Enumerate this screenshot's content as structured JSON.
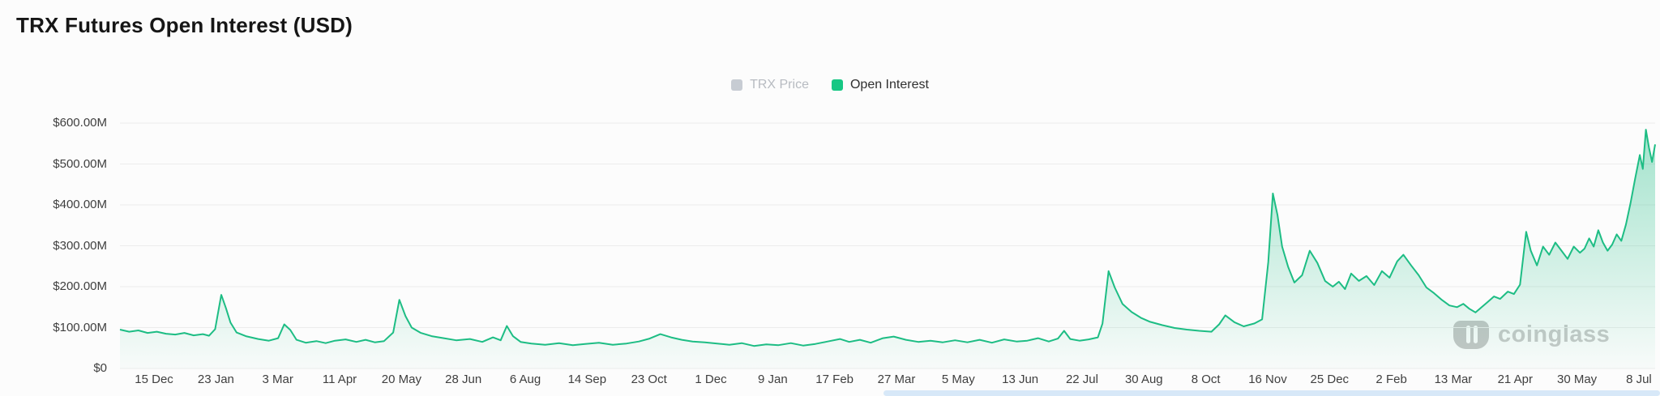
{
  "title": "TRX Futures Open Interest (USD)",
  "legend": {
    "items": [
      {
        "label": "TRX Price",
        "color": "#c7ccd3",
        "text_color": "#b7bbc1",
        "active": false
      },
      {
        "label": "Open Interest",
        "color": "#17c784",
        "text_color": "#2f2f2f",
        "active": true
      }
    ]
  },
  "watermark": {
    "text": "coinglass"
  },
  "colors": {
    "background": "#fcfcfc",
    "line": "#1dbd84",
    "area_top": "rgba(29,189,132,0.40)",
    "area_bottom": "rgba(29,189,132,0.02)",
    "grid": "#ececec",
    "axis_text": "#3f3f3f",
    "scrollbar": "#d7e8f8"
  },
  "chart_data": {
    "type": "area",
    "title": "TRX Futures Open Interest (USD)",
    "xlabel": "",
    "ylabel": "",
    "grid": "horizontal",
    "legend_position": "top-center",
    "ylim_usd": [
      0,
      600000000
    ],
    "y_unit": "millions of USD",
    "y_ticks": [
      {
        "value": 0,
        "label": "$0"
      },
      {
        "value": 100,
        "label": "$100.00M"
      },
      {
        "value": 200,
        "label": "$200.00M"
      },
      {
        "value": 300,
        "label": "$300.00M"
      },
      {
        "value": 400,
        "label": "$400.00M"
      },
      {
        "value": 500,
        "label": "$500.00M"
      },
      {
        "value": 600,
        "label": "$600.00M"
      }
    ],
    "x_ticks": [
      "15 Dec",
      "23 Jan",
      "3 Mar",
      "11 Apr",
      "20 May",
      "28 Jun",
      "6 Aug",
      "14 Sep",
      "23 Oct",
      "1 Dec",
      "9 Jan",
      "17 Feb",
      "27 Mar",
      "5 May",
      "13 Jun",
      "22 Jul",
      "30 Aug",
      "8 Oct",
      "16 Nov",
      "25 Dec",
      "2 Feb",
      "13 Mar",
      "21 Apr",
      "30 May",
      "8 Jul"
    ],
    "series": [
      {
        "name": "Open Interest",
        "unit": "USD (millions), x = fraction of plotted time range",
        "points": [
          [
            0.0,
            95
          ],
          [
            0.006,
            90
          ],
          [
            0.012,
            93
          ],
          [
            0.018,
            87
          ],
          [
            0.024,
            90
          ],
          [
            0.03,
            85
          ],
          [
            0.036,
            83
          ],
          [
            0.042,
            87
          ],
          [
            0.048,
            81
          ],
          [
            0.054,
            84
          ],
          [
            0.058,
            80
          ],
          [
            0.062,
            96
          ],
          [
            0.066,
            180
          ],
          [
            0.069,
            148
          ],
          [
            0.072,
            112
          ],
          [
            0.076,
            88
          ],
          [
            0.082,
            79
          ],
          [
            0.09,
            72
          ],
          [
            0.097,
            68
          ],
          [
            0.103,
            74
          ],
          [
            0.107,
            108
          ],
          [
            0.111,
            94
          ],
          [
            0.115,
            70
          ],
          [
            0.121,
            63
          ],
          [
            0.128,
            67
          ],
          [
            0.134,
            62
          ],
          [
            0.14,
            68
          ],
          [
            0.147,
            71
          ],
          [
            0.154,
            65
          ],
          [
            0.16,
            70
          ],
          [
            0.166,
            64
          ],
          [
            0.172,
            67
          ],
          [
            0.178,
            88
          ],
          [
            0.182,
            168
          ],
          [
            0.186,
            128
          ],
          [
            0.19,
            100
          ],
          [
            0.196,
            87
          ],
          [
            0.203,
            79
          ],
          [
            0.211,
            74
          ],
          [
            0.219,
            69
          ],
          [
            0.228,
            72
          ],
          [
            0.236,
            65
          ],
          [
            0.243,
            76
          ],
          [
            0.248,
            69
          ],
          [
            0.252,
            104
          ],
          [
            0.256,
            79
          ],
          [
            0.261,
            65
          ],
          [
            0.268,
            61
          ],
          [
            0.277,
            58
          ],
          [
            0.286,
            62
          ],
          [
            0.295,
            57
          ],
          [
            0.303,
            60
          ],
          [
            0.312,
            63
          ],
          [
            0.321,
            58
          ],
          [
            0.33,
            61
          ],
          [
            0.338,
            66
          ],
          [
            0.345,
            73
          ],
          [
            0.352,
            84
          ],
          [
            0.359,
            76
          ],
          [
            0.366,
            70
          ],
          [
            0.373,
            66
          ],
          [
            0.381,
            64
          ],
          [
            0.389,
            61
          ],
          [
            0.397,
            58
          ],
          [
            0.405,
            62
          ],
          [
            0.413,
            55
          ],
          [
            0.421,
            59
          ],
          [
            0.429,
            57
          ],
          [
            0.437,
            62
          ],
          [
            0.445,
            56
          ],
          [
            0.453,
            60
          ],
          [
            0.461,
            66
          ],
          [
            0.469,
            72
          ],
          [
            0.475,
            65
          ],
          [
            0.482,
            70
          ],
          [
            0.489,
            63
          ],
          [
            0.497,
            74
          ],
          [
            0.504,
            78
          ],
          [
            0.512,
            70
          ],
          [
            0.52,
            65
          ],
          [
            0.528,
            68
          ],
          [
            0.536,
            64
          ],
          [
            0.544,
            69
          ],
          [
            0.552,
            64
          ],
          [
            0.56,
            70
          ],
          [
            0.568,
            63
          ],
          [
            0.576,
            71
          ],
          [
            0.584,
            66
          ],
          [
            0.591,
            68
          ],
          [
            0.598,
            74
          ],
          [
            0.605,
            66
          ],
          [
            0.611,
            73
          ],
          [
            0.615,
            92
          ],
          [
            0.619,
            72
          ],
          [
            0.625,
            68
          ],
          [
            0.631,
            71
          ],
          [
            0.637,
            76
          ],
          [
            0.64,
            110
          ],
          [
            0.644,
            238
          ],
          [
            0.648,
            198
          ],
          [
            0.653,
            158
          ],
          [
            0.659,
            138
          ],
          [
            0.665,
            124
          ],
          [
            0.671,
            114
          ],
          [
            0.679,
            106
          ],
          [
            0.687,
            99
          ],
          [
            0.695,
            95
          ],
          [
            0.703,
            92
          ],
          [
            0.711,
            90
          ],
          [
            0.716,
            108
          ],
          [
            0.72,
            130
          ],
          [
            0.726,
            113
          ],
          [
            0.732,
            103
          ],
          [
            0.739,
            110
          ],
          [
            0.744,
            120
          ],
          [
            0.748,
            260
          ],
          [
            0.751,
            428
          ],
          [
            0.754,
            375
          ],
          [
            0.757,
            298
          ],
          [
            0.761,
            248
          ],
          [
            0.765,
            210
          ],
          [
            0.77,
            228
          ],
          [
            0.775,
            288
          ],
          [
            0.78,
            258
          ],
          [
            0.785,
            214
          ],
          [
            0.79,
            200
          ],
          [
            0.794,
            212
          ],
          [
            0.798,
            194
          ],
          [
            0.802,
            232
          ],
          [
            0.807,
            214
          ],
          [
            0.812,
            226
          ],
          [
            0.817,
            204
          ],
          [
            0.822,
            238
          ],
          [
            0.827,
            222
          ],
          [
            0.832,
            262
          ],
          [
            0.836,
            278
          ],
          [
            0.841,
            252
          ],
          [
            0.846,
            228
          ],
          [
            0.851,
            198
          ],
          [
            0.856,
            184
          ],
          [
            0.861,
            168
          ],
          [
            0.866,
            154
          ],
          [
            0.871,
            150
          ],
          [
            0.875,
            158
          ],
          [
            0.879,
            146
          ],
          [
            0.883,
            137
          ],
          [
            0.887,
            150
          ],
          [
            0.891,
            163
          ],
          [
            0.895,
            176
          ],
          [
            0.899,
            170
          ],
          [
            0.904,
            188
          ],
          [
            0.908,
            182
          ],
          [
            0.912,
            205
          ],
          [
            0.916,
            334
          ],
          [
            0.919,
            288
          ],
          [
            0.923,
            252
          ],
          [
            0.927,
            298
          ],
          [
            0.931,
            278
          ],
          [
            0.935,
            308
          ],
          [
            0.939,
            288
          ],
          [
            0.943,
            268
          ],
          [
            0.947,
            298
          ],
          [
            0.951,
            283
          ],
          [
            0.954,
            293
          ],
          [
            0.957,
            318
          ],
          [
            0.96,
            298
          ],
          [
            0.963,
            338
          ],
          [
            0.966,
            308
          ],
          [
            0.969,
            288
          ],
          [
            0.972,
            303
          ],
          [
            0.975,
            328
          ],
          [
            0.978,
            312
          ],
          [
            0.981,
            352
          ],
          [
            0.984,
            405
          ],
          [
            0.987,
            465
          ],
          [
            0.99,
            522
          ],
          [
            0.992,
            488
          ],
          [
            0.994,
            584
          ],
          [
            0.996,
            540
          ],
          [
            0.998,
            505
          ],
          [
            1.0,
            548
          ]
        ]
      }
    ]
  }
}
